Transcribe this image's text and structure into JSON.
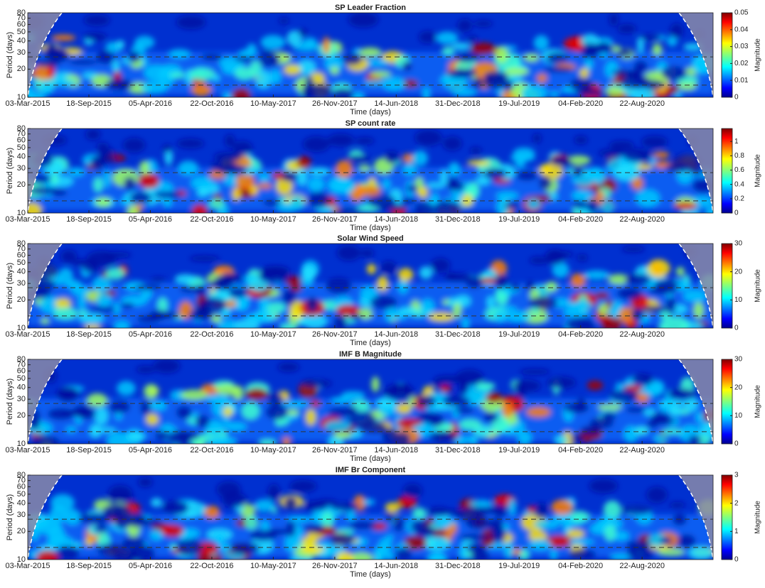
{
  "chart_data": [
    {
      "type": "heatmap",
      "title": "SP Leader Fraction",
      "xlabel": "Time (days)",
      "ylabel": "Period (days)",
      "ylog": true,
      "ylim": [
        10,
        80
      ],
      "yticks": [
        10,
        20,
        30,
        40,
        50,
        60,
        70,
        80
      ],
      "xlim": [
        0,
        2230
      ],
      "xticks": [
        {
          "value": 0,
          "label": "03-Mar-2015"
        },
        {
          "value": 199,
          "label": "18-Sep-2015"
        },
        {
          "value": 399,
          "label": "05-Apr-2016"
        },
        {
          "value": 599,
          "label": "22-Oct-2016"
        },
        {
          "value": 799,
          "label": "10-May-2017"
        },
        {
          "value": 999,
          "label": "26-Nov-2017"
        },
        {
          "value": 1199,
          "label": "14-Jun-2018"
        },
        {
          "value": 1399,
          "label": "31-Dec-2018"
        },
        {
          "value": 1599,
          "label": "19-Jul-2019"
        },
        {
          "value": 1799,
          "label": "04-Feb-2020"
        },
        {
          "value": 1999,
          "label": "22-Aug-2020"
        }
      ],
      "hlines": [
        27,
        13.5
      ],
      "clabel": "Magnitude",
      "clim": [
        0,
        0.05
      ],
      "cticks": [
        0,
        0.01,
        0.02,
        0.03,
        0.04,
        0.05
      ]
    },
    {
      "type": "heatmap",
      "title": "SP count rate",
      "xlabel": "Time (days)",
      "ylabel": "Period (days)",
      "ylog": true,
      "ylim": [
        10,
        80
      ],
      "yticks": [
        10,
        20,
        30,
        40,
        50,
        60,
        70,
        80
      ],
      "xlim": [
        0,
        2230
      ],
      "xticks": [
        {
          "value": 0,
          "label": "03-Mar-2015"
        },
        {
          "value": 199,
          "label": "18-Sep-2015"
        },
        {
          "value": 399,
          "label": "05-Apr-2016"
        },
        {
          "value": 599,
          "label": "22-Oct-2016"
        },
        {
          "value": 799,
          "label": "10-May-2017"
        },
        {
          "value": 999,
          "label": "26-Nov-2017"
        },
        {
          "value": 1199,
          "label": "14-Jun-2018"
        },
        {
          "value": 1399,
          "label": "31-Dec-2018"
        },
        {
          "value": 1599,
          "label": "19-Jul-2019"
        },
        {
          "value": 1799,
          "label": "04-Feb-2020"
        },
        {
          "value": 1999,
          "label": "22-Aug-2020"
        }
      ],
      "hlines": [
        27,
        13.5
      ],
      "clabel": "Magnitude",
      "clim": [
        0,
        1.18
      ],
      "cticks": [
        0,
        0.2,
        0.4,
        0.6,
        0.8,
        1
      ]
    },
    {
      "type": "heatmap",
      "title": "Solar Wind Speed",
      "xlabel": "Time (days)",
      "ylabel": "Period (days)",
      "ylog": true,
      "ylim": [
        10,
        80
      ],
      "yticks": [
        10,
        20,
        30,
        40,
        50,
        60,
        70,
        80
      ],
      "xlim": [
        0,
        2230
      ],
      "xticks": [
        {
          "value": 0,
          "label": "03-Mar-2015"
        },
        {
          "value": 199,
          "label": "18-Sep-2015"
        },
        {
          "value": 399,
          "label": "05-Apr-2016"
        },
        {
          "value": 599,
          "label": "22-Oct-2016"
        },
        {
          "value": 799,
          "label": "10-May-2017"
        },
        {
          "value": 999,
          "label": "26-Nov-2017"
        },
        {
          "value": 1199,
          "label": "14-Jun-2018"
        },
        {
          "value": 1399,
          "label": "31-Dec-2018"
        },
        {
          "value": 1599,
          "label": "19-Jul-2019"
        },
        {
          "value": 1799,
          "label": "04-Feb-2020"
        },
        {
          "value": 1999,
          "label": "22-Aug-2020"
        }
      ],
      "hlines": [
        27,
        13.5
      ],
      "clabel": "Magnitude",
      "clim": [
        0,
        30
      ],
      "cticks": [
        0,
        10,
        20,
        30
      ]
    },
    {
      "type": "heatmap",
      "title": "IMF B Magnitude",
      "xlabel": "Time (days)",
      "ylabel": "Period (days)",
      "ylog": true,
      "ylim": [
        10,
        80
      ],
      "yticks": [
        10,
        20,
        30,
        40,
        50,
        60,
        70,
        80
      ],
      "xlim": [
        0,
        2230
      ],
      "xticks": [
        {
          "value": 0,
          "label": "03-Mar-2015"
        },
        {
          "value": 199,
          "label": "18-Sep-2015"
        },
        {
          "value": 399,
          "label": "05-Apr-2016"
        },
        {
          "value": 599,
          "label": "22-Oct-2016"
        },
        {
          "value": 799,
          "label": "10-May-2017"
        },
        {
          "value": 999,
          "label": "26-Nov-2017"
        },
        {
          "value": 1199,
          "label": "14-Jun-2018"
        },
        {
          "value": 1399,
          "label": "31-Dec-2018"
        },
        {
          "value": 1599,
          "label": "19-Jul-2019"
        },
        {
          "value": 1799,
          "label": "04-Feb-2020"
        },
        {
          "value": 1999,
          "label": "22-Aug-2020"
        }
      ],
      "hlines": [
        27,
        13.5
      ],
      "clabel": "Magnitude",
      "clim": [
        0,
        30
      ],
      "cticks": [
        0,
        10,
        20,
        30
      ]
    },
    {
      "type": "heatmap",
      "title": "IMF Br Component",
      "xlabel": "Time (days)",
      "ylabel": "Period (days)",
      "ylog": true,
      "ylim": [
        10,
        80
      ],
      "yticks": [
        10,
        20,
        30,
        40,
        50,
        60,
        70,
        80
      ],
      "xlim": [
        0,
        2230
      ],
      "xticks": [
        {
          "value": 0,
          "label": "03-Mar-2015"
        },
        {
          "value": 199,
          "label": "18-Sep-2015"
        },
        {
          "value": 399,
          "label": "05-Apr-2016"
        },
        {
          "value": 599,
          "label": "22-Oct-2016"
        },
        {
          "value": 799,
          "label": "10-May-2017"
        },
        {
          "value": 999,
          "label": "26-Nov-2017"
        },
        {
          "value": 1199,
          "label": "14-Jun-2018"
        },
        {
          "value": 1399,
          "label": "31-Dec-2018"
        },
        {
          "value": 1599,
          "label": "19-Jul-2019"
        },
        {
          "value": 1799,
          "label": "04-Feb-2020"
        },
        {
          "value": 1999,
          "label": "22-Aug-2020"
        }
      ],
      "hlines": [
        27,
        13.5
      ],
      "clabel": "Magnitude",
      "clim": [
        0,
        3
      ],
      "cticks": [
        0,
        1,
        2,
        3
      ]
    }
  ]
}
